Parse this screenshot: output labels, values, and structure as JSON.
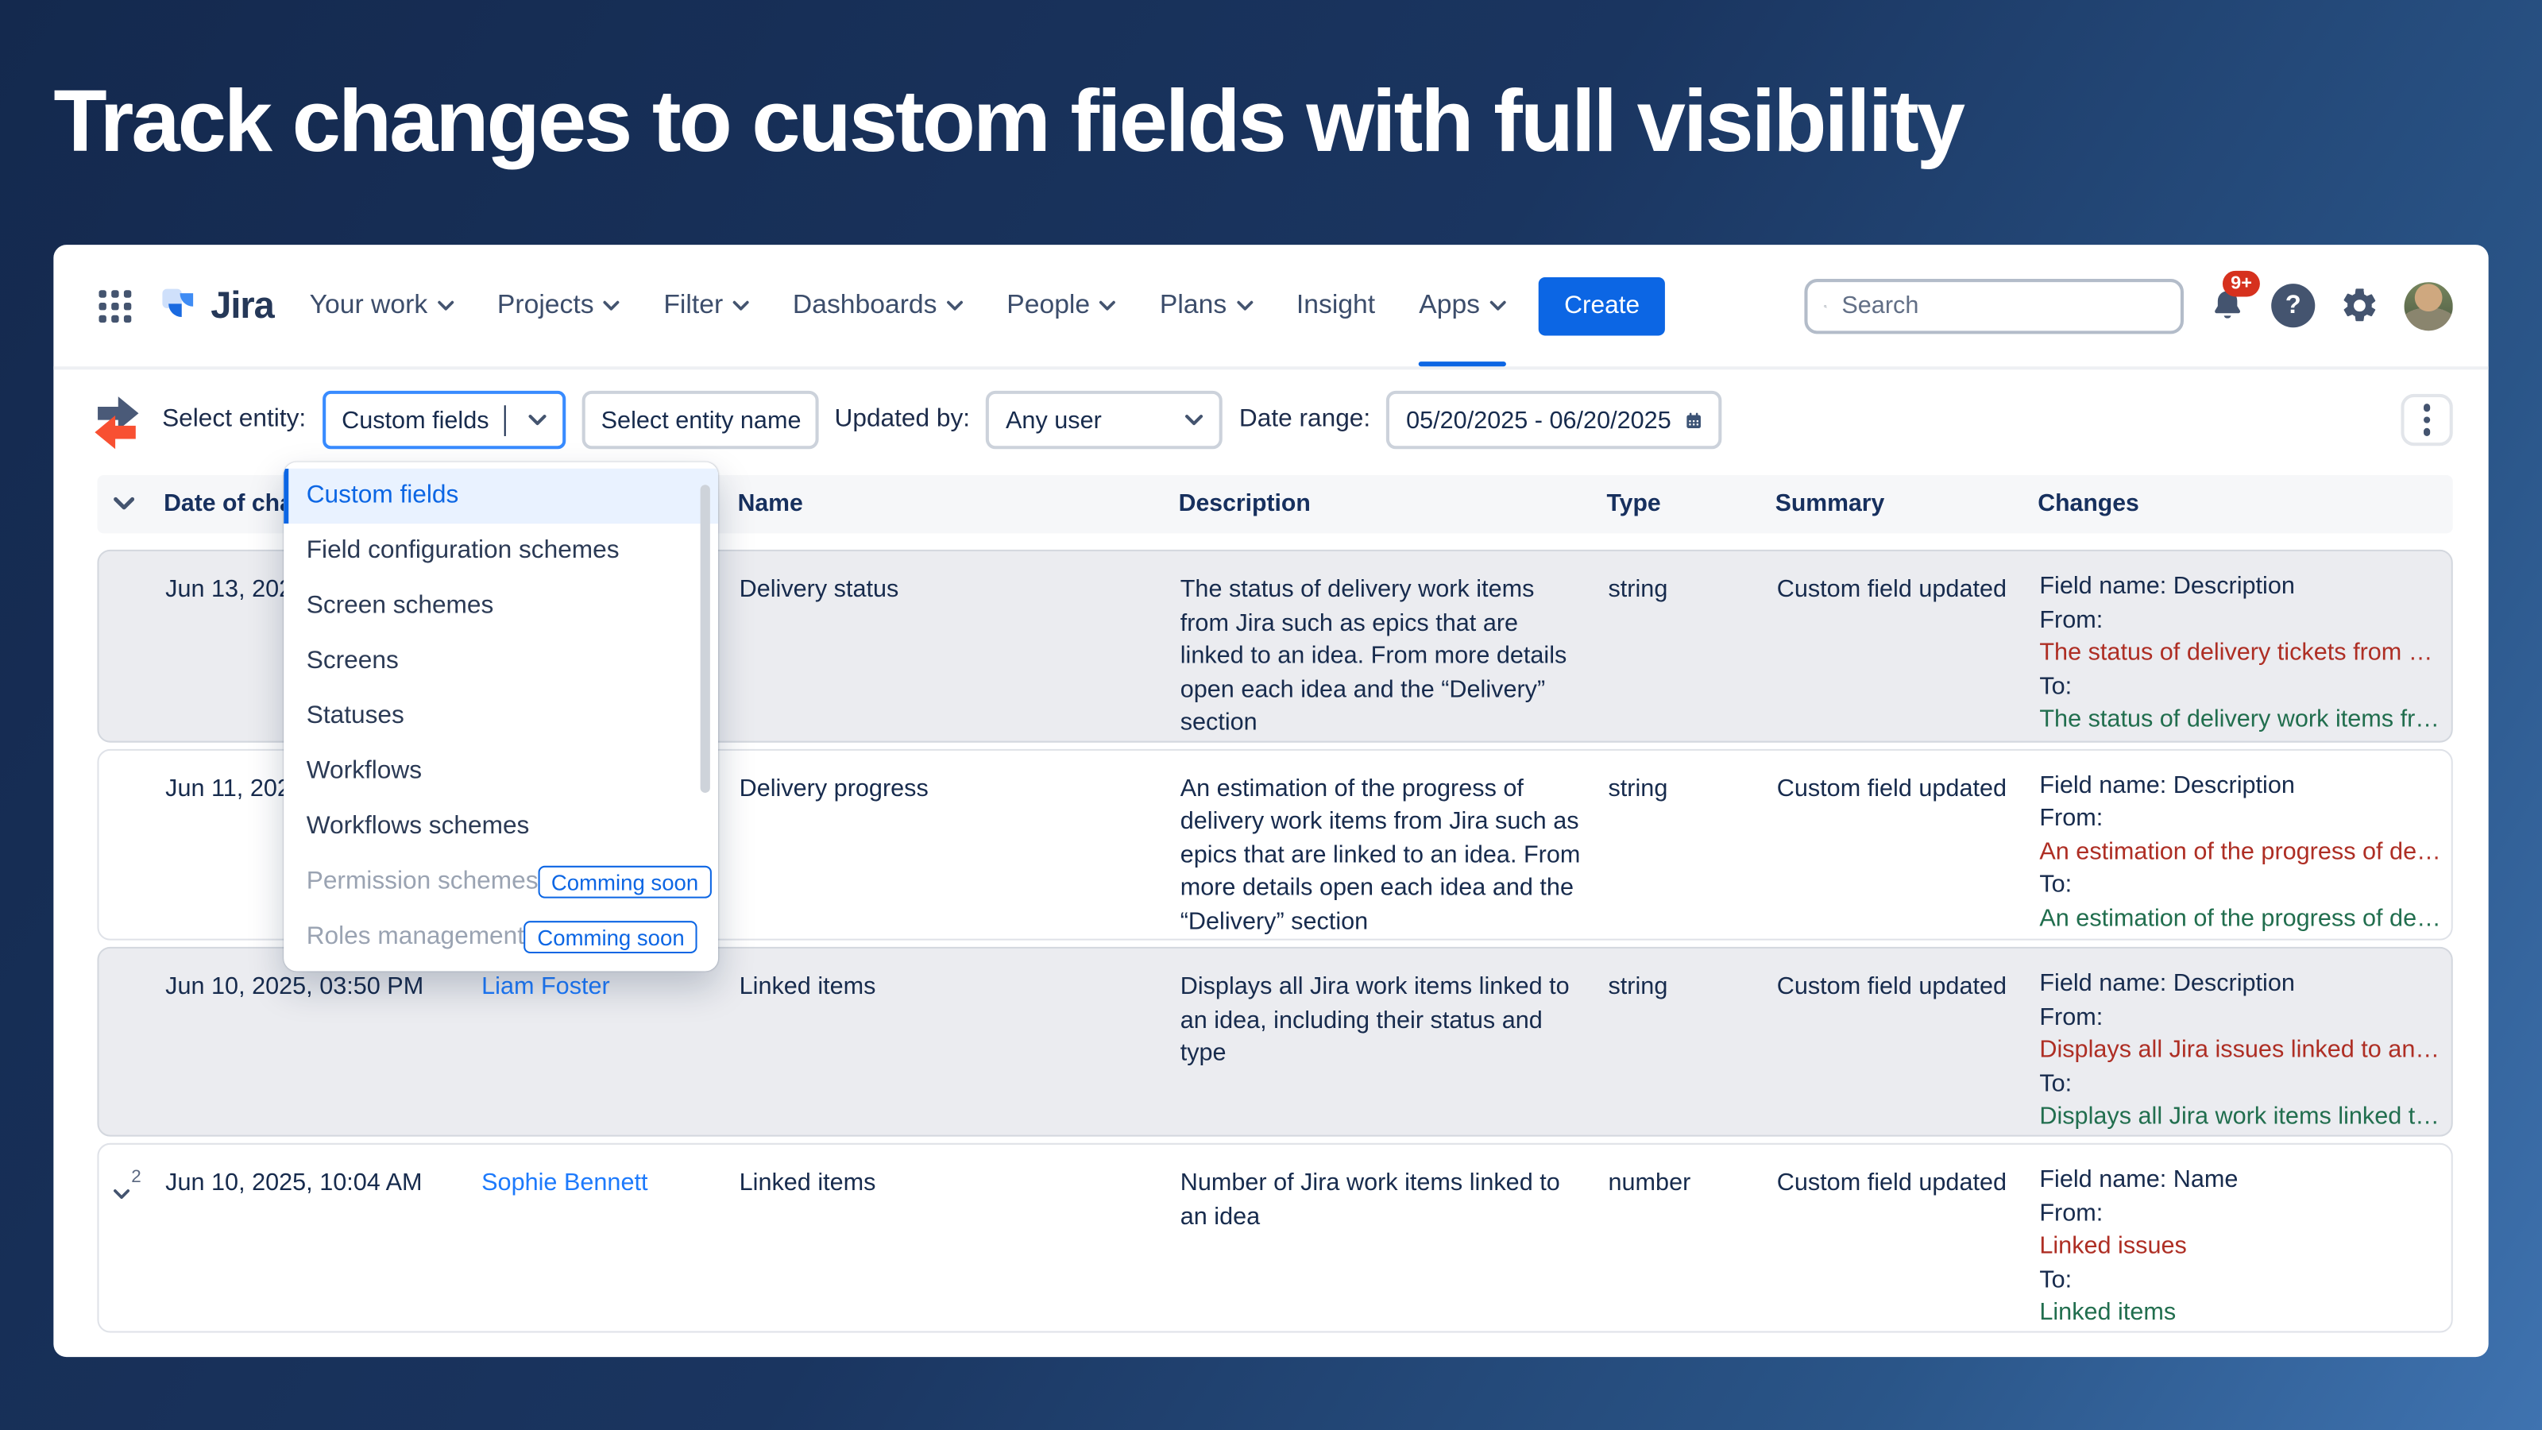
{
  "page": {
    "title": "Track changes to custom fields with full visibility"
  },
  "colors": {
    "accent": "#0c66e4",
    "link": "#1d7afc",
    "removed_text": "#ae2e24",
    "added_text": "#216e4e",
    "notification_badge_bg": "#d6311e"
  },
  "nav": {
    "logo_text": "Jira",
    "items": [
      {
        "label": "Your work",
        "caret": true
      },
      {
        "label": "Projects",
        "caret": true
      },
      {
        "label": "Filter",
        "caret": true
      },
      {
        "label": "Dashboards",
        "caret": true
      },
      {
        "label": "People",
        "caret": true
      },
      {
        "label": "Plans",
        "caret": true
      },
      {
        "label": "Insight",
        "caret": false
      },
      {
        "label": "Apps",
        "caret": true,
        "active": true
      }
    ],
    "create_label": "Create",
    "search_placeholder": "Search",
    "notification_badge": "9+"
  },
  "filters": {
    "select_entity_label": "Select entity:",
    "entity_value": "Custom fields",
    "entity_name_placeholder": "Select entity name",
    "updated_by_label": "Updated by:",
    "updated_by_value": "Any user",
    "date_range_label": "Date range:",
    "date_range_value": "05/20/2025 - 06/20/2025"
  },
  "dropdown": {
    "items": [
      {
        "label": "Custom fields",
        "selected": true
      },
      {
        "label": "Field configuration schemes"
      },
      {
        "label": "Screen schemes"
      },
      {
        "label": "Screens"
      },
      {
        "label": "Statuses"
      },
      {
        "label": "Workflows"
      },
      {
        "label": "Workflows schemes"
      },
      {
        "label": "Permission schemes",
        "disabled": true,
        "badge": "Comming soon"
      },
      {
        "label": "Roles management",
        "disabled": true,
        "badge": "Comming soon"
      }
    ]
  },
  "table": {
    "headers": {
      "date": "Date of change",
      "updated_by": "",
      "name": "Name",
      "description": "Description",
      "type": "Type",
      "summary": "Summary",
      "changes": "Changes"
    },
    "rows": [
      {
        "shaded": true,
        "expand_count": "",
        "date": "Jun 13, 202",
        "updated_by": "",
        "name": "Delivery status",
        "description": "The status of delivery work items from Jira such as epics that are linked to an idea. From more details open each idea and the “Delivery” section",
        "type": "string",
        "summary": "Custom field updated",
        "changes": {
          "field": "Field name: Description",
          "from_label": "From:",
          "from": "The status of delivery tickets from Jira…",
          "to_label": "To:",
          "to": "The status of delivery work items from…"
        }
      },
      {
        "shaded": false,
        "expand_count": "",
        "date": "Jun 11, 202",
        "updated_by": "",
        "name": "Delivery progress",
        "description": "An estimation of the progress of delivery work items from Jira such as epics that are linked to an idea. From more details open each idea and the “Delivery” section",
        "type": "string",
        "summary": "Custom field updated",
        "changes": {
          "field": "Field name: Description",
          "from_label": "From:",
          "from": "An estimation of the progress of delive…",
          "to_label": "To:",
          "to": "An estimation of the progress of delive…"
        }
      },
      {
        "shaded": true,
        "expand_count": "",
        "date": "Jun 10, 2025, 03:50 PM",
        "updated_by": "Liam Foster",
        "name": "Linked items",
        "description": "Displays all Jira work items linked to an idea, including their status and type",
        "type": "string",
        "summary": "Custom field updated",
        "changes": {
          "field": "Field name: Description",
          "from_label": "From:",
          "from": "Displays all Jira issues linked to an ide…",
          "to_label": "To:",
          "to": "Displays all Jira work items linked to an…"
        }
      },
      {
        "shaded": false,
        "expand_count": "2",
        "date": "Jun 10, 2025, 10:04 AM",
        "updated_by": "Sophie Bennett",
        "name": "Linked items",
        "description": "Number of Jira work items linked to an idea",
        "type": "number",
        "summary": "Custom field updated",
        "changes": {
          "field": "Field name: Name",
          "from_label": "From:",
          "from": "Linked issues",
          "to_label": "To:",
          "to": "Linked items"
        }
      }
    ]
  }
}
